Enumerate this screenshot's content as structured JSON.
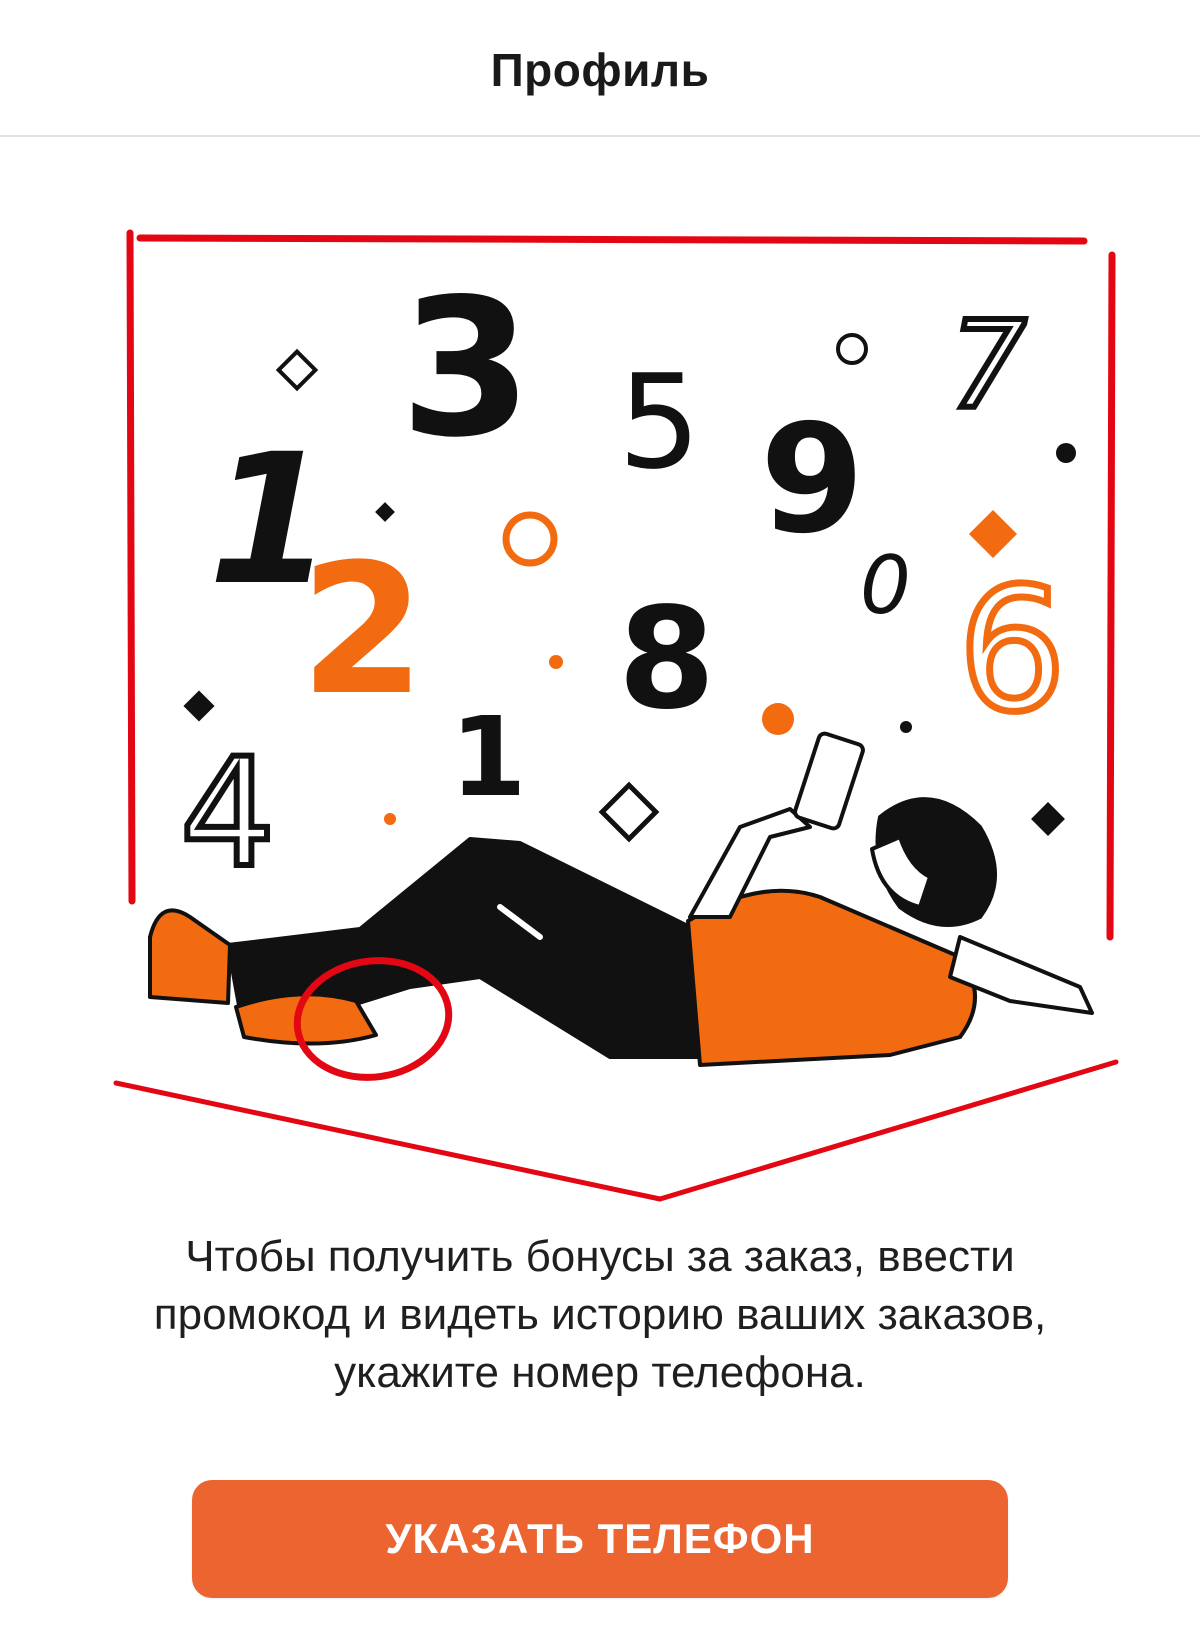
{
  "header": {
    "title": "Профиль"
  },
  "illustration": {
    "digits": [
      "1",
      "3",
      "5",
      "9",
      "7",
      "2",
      "8",
      "0",
      "6",
      "4",
      "1"
    ],
    "accent_color": "#f26b10",
    "annotation_color": "#e30613"
  },
  "body": {
    "description_lines": [
      "Чтобы получить бонусы за заказ, ввести",
      "промокод и видеть историю ваших заказов,",
      "укажите номер телефона."
    ]
  },
  "cta": {
    "label": "УКАЗАТЬ ТЕЛЕФОН",
    "color": "#ec6430"
  }
}
